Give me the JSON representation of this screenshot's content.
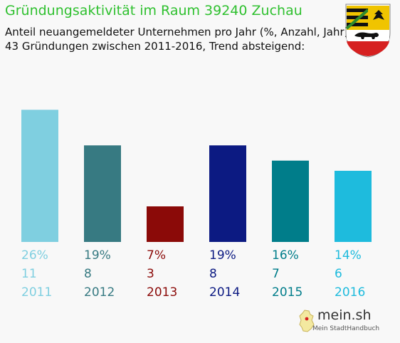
{
  "header": {
    "title": "Gründungsaktivität im Raum 39240 Zuchau",
    "subtitle_line1": "Anteil neuangemeldeter Unternehmen pro Jahr (%, Anzahl, Jahr)",
    "subtitle_line2": "43 Gründungen zwischen 2011-2016, Trend absteigend:"
  },
  "branding": {
    "logo_text": "mein.sh",
    "logo_subtext": "Mein StadtHandbuch",
    "crest_icon": "saxony-anhalt-coat-of-arms-icon"
  },
  "chart_data": {
    "type": "bar",
    "categories": [
      "2011",
      "2012",
      "2013",
      "2014",
      "2015",
      "2016"
    ],
    "values": [
      26,
      19,
      7,
      19,
      16,
      14
    ],
    "percent_labels": [
      "26%",
      "19%",
      "7%",
      "19%",
      "16%",
      "14%"
    ],
    "counts": [
      11,
      8,
      3,
      8,
      7,
      6
    ],
    "colors": [
      "#7fcfe0",
      "#377a82",
      "#8b0a08",
      "#0c1a82",
      "#007d8a",
      "#1ebbdd"
    ],
    "ylim": [
      0,
      28
    ],
    "grid": false
  }
}
